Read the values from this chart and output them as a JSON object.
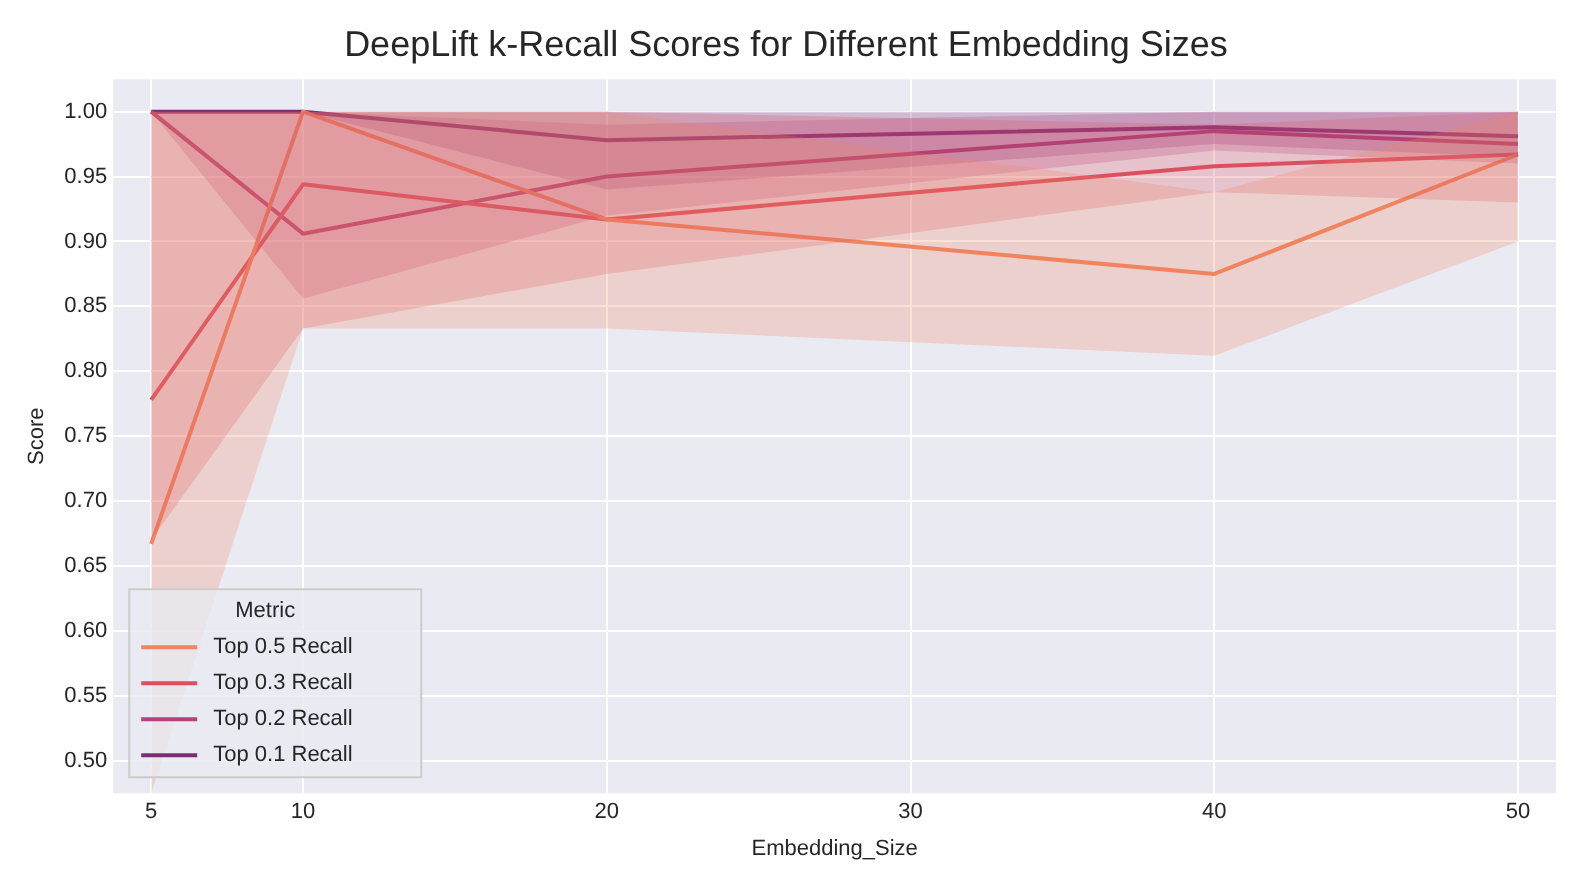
{
  "chart_data": {
    "type": "line",
    "title": "DeepLift k-Recall Scores for Different Embedding Sizes",
    "xlabel": "Embedding_Size",
    "ylabel": "Score",
    "legend_title": "Metric",
    "legend": "bottom left",
    "grid": true,
    "line_style": "solid",
    "marker": "none",
    "x": [
      5,
      10,
      20,
      40,
      50
    ],
    "xlim": [
      3.75,
      51.25
    ],
    "xticks": [
      5,
      10,
      20,
      30,
      40,
      50
    ],
    "ylim": [
      0.475,
      1.025
    ],
    "yticks": [
      {
        "value": 0.5,
        "label": "0.50"
      },
      {
        "value": 0.55,
        "label": "0.55"
      },
      {
        "value": 0.6,
        "label": "0.60"
      },
      {
        "value": 0.65,
        "label": "0.65"
      },
      {
        "value": 0.7,
        "label": "0.70"
      },
      {
        "value": 0.75,
        "label": "0.75"
      },
      {
        "value": 0.8,
        "label": "0.80"
      },
      {
        "value": 0.85,
        "label": "0.85"
      },
      {
        "value": 0.9,
        "label": "0.90"
      },
      {
        "value": 0.95,
        "label": "0.95"
      },
      {
        "value": 1.0,
        "label": "1.00"
      }
    ],
    "series": [
      {
        "name": "Top 0.5 Recall",
        "color": "#f0855f",
        "values": [
          0.667,
          1.0,
          0.917,
          0.875,
          0.967
        ],
        "lower": [
          0.475,
          0.833,
          0.833,
          0.812,
          0.9
        ],
        "upper": [
          1.0,
          1.0,
          1.0,
          0.938,
          1.0
        ]
      },
      {
        "name": "Top 0.3 Recall",
        "color": "#dd4f5f",
        "values": [
          0.778,
          0.944,
          0.917,
          0.958,
          0.967
        ],
        "lower": [
          0.67,
          0.833,
          0.875,
          0.938,
          0.93
        ],
        "upper": [
          1.0,
          1.0,
          1.0,
          0.99,
          1.0
        ]
      },
      {
        "name": "Top 0.2 Recall",
        "color": "#b5407a",
        "values": [
          1.0,
          0.906,
          0.95,
          0.985,
          0.975
        ],
        "lower": [
          1.0,
          0.856,
          0.92,
          0.97,
          0.96
        ],
        "upper": [
          1.0,
          1.0,
          0.99,
          1.0,
          1.0
        ]
      },
      {
        "name": "Top 0.1 Recall",
        "color": "#7b2c74",
        "values": [
          1.0,
          1.0,
          0.978,
          0.988,
          0.981
        ],
        "lower": [
          1.0,
          1.0,
          0.94,
          0.975,
          0.965
        ],
        "upper": [
          1.0,
          1.0,
          1.0,
          1.0,
          1.0
        ]
      }
    ]
  }
}
